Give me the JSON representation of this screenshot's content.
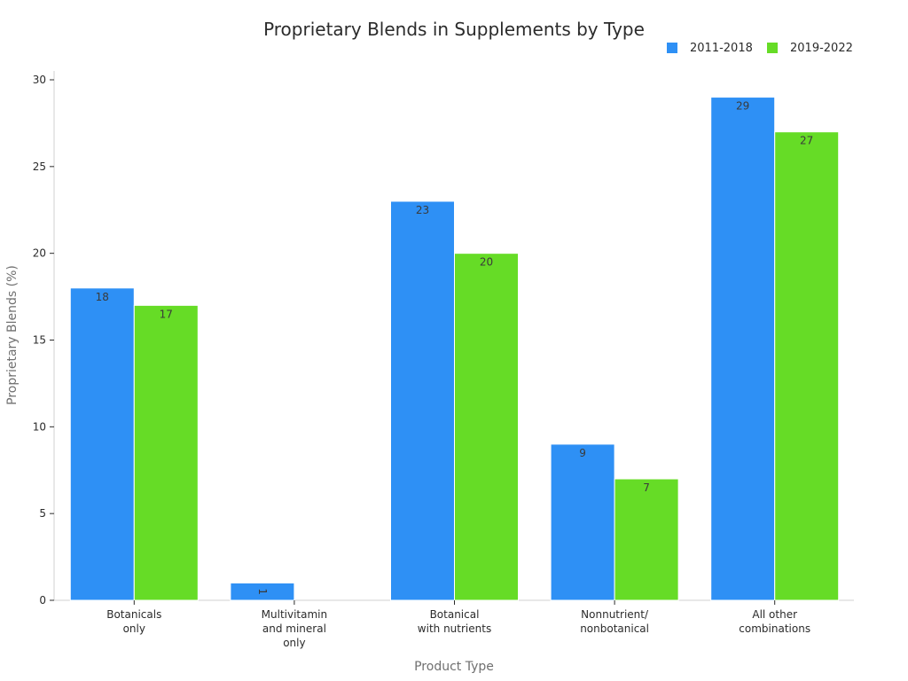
{
  "chart_data": {
    "type": "bar",
    "title": "Proprietary Blends in Supplements by Type",
    "xlabel": "Product Type",
    "ylabel": "Proprietary Blends (%)",
    "categories": [
      [
        "Botanicals",
        "only"
      ],
      [
        "Multivitamin",
        "and mineral",
        "only"
      ],
      [
        "Botanical",
        "with nutrients"
      ],
      [
        "Nonnutrient/",
        "nonbotanical"
      ],
      [
        "All other",
        "combinations"
      ]
    ],
    "series": [
      {
        "name": "2011-2018",
        "color": "#2e90f5",
        "values": [
          18,
          1,
          23,
          9,
          29
        ]
      },
      {
        "name": "2019-2022",
        "color": "#66dc26",
        "values": [
          17,
          null,
          20,
          7,
          27
        ]
      }
    ],
    "ylim": [
      0,
      30
    ],
    "yticks": [
      0,
      5,
      10,
      15,
      20,
      25,
      30
    ],
    "grid": false,
    "legend_position": "top-right"
  }
}
